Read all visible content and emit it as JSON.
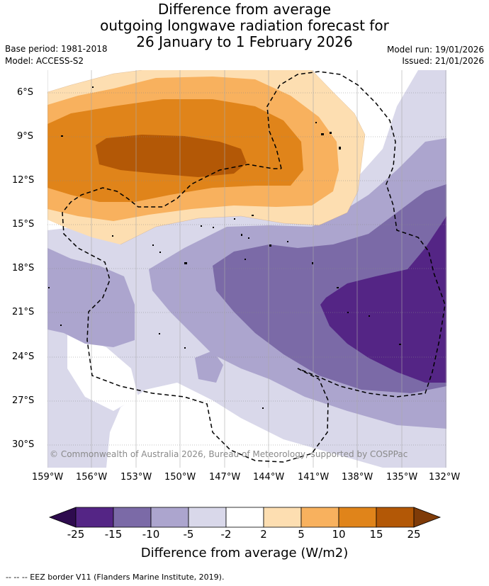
{
  "title_lines": [
    "Difference from average",
    "outgoing longwave radiation forecast for",
    "26 January to 1 February 2026"
  ],
  "base_period": "Base period: 1981-2018",
  "model": "Model: ACCESS-S2",
  "model_run": "Model run: 19/01/2026",
  "issued": "Issued: 21/01/2026",
  "lat_labels": [
    "6°S",
    "9°S",
    "12°S",
    "15°S",
    "18°S",
    "21°S",
    "24°S",
    "27°S",
    "30°S"
  ],
  "lon_labels": [
    "159°W",
    "156°W",
    "153°W",
    "150°W",
    "147°W",
    "144°W",
    "141°W",
    "138°W",
    "135°W",
    "132°W"
  ],
  "copyright": "© Commonwealth of Australia 2026, Bureau of Meteorology, supported by COSPPac",
  "colorbar": {
    "labels": [
      "-25",
      "-15",
      "-10",
      "-5",
      "-2",
      "2",
      "5",
      "10",
      "15",
      "25"
    ],
    "colors": [
      "#2e0b4e",
      "#542585",
      "#7b6aa7",
      "#aca5ce",
      "#d9d8ea",
      "#ffffff",
      "#fddeb1",
      "#f8b15e",
      "#e0841a",
      "#b35806",
      "#7f3b08"
    ],
    "title": "Difference from average (W/m2)"
  },
  "footer": "-- -- -- EEZ border V11 (Flanders Marine Institute, 2019)."
}
